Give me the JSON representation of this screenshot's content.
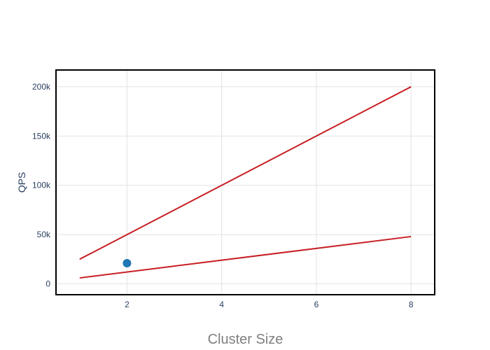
{
  "chart_data": {
    "type": "line",
    "xlabel": "Cluster Size",
    "ylabel": "QPS",
    "xlim": [
      0.5,
      8.5
    ],
    "ylim": [
      -11000,
      217000
    ],
    "x_ticks": [
      2,
      4,
      6,
      8
    ],
    "x_tick_labels": [
      "2",
      "4",
      "6",
      "8"
    ],
    "y_ticks": [
      0,
      50000,
      100000,
      150000,
      200000
    ],
    "y_tick_labels": [
      "0",
      "50k",
      "100k",
      "150k",
      "200k"
    ],
    "grid": true,
    "legend": "none",
    "series": [
      {
        "kind": "line",
        "color": "#c81e24",
        "x": [
          1,
          8
        ],
        "y": [
          25000,
          200000
        ]
      },
      {
        "kind": "line",
        "color": "#c81e24",
        "x": [
          1,
          8
        ],
        "y": [
          6000,
          48000
        ]
      },
      {
        "kind": "scatter",
        "color": "#1f77b4",
        "x": [
          2
        ],
        "y": [
          21000
        ]
      }
    ]
  }
}
